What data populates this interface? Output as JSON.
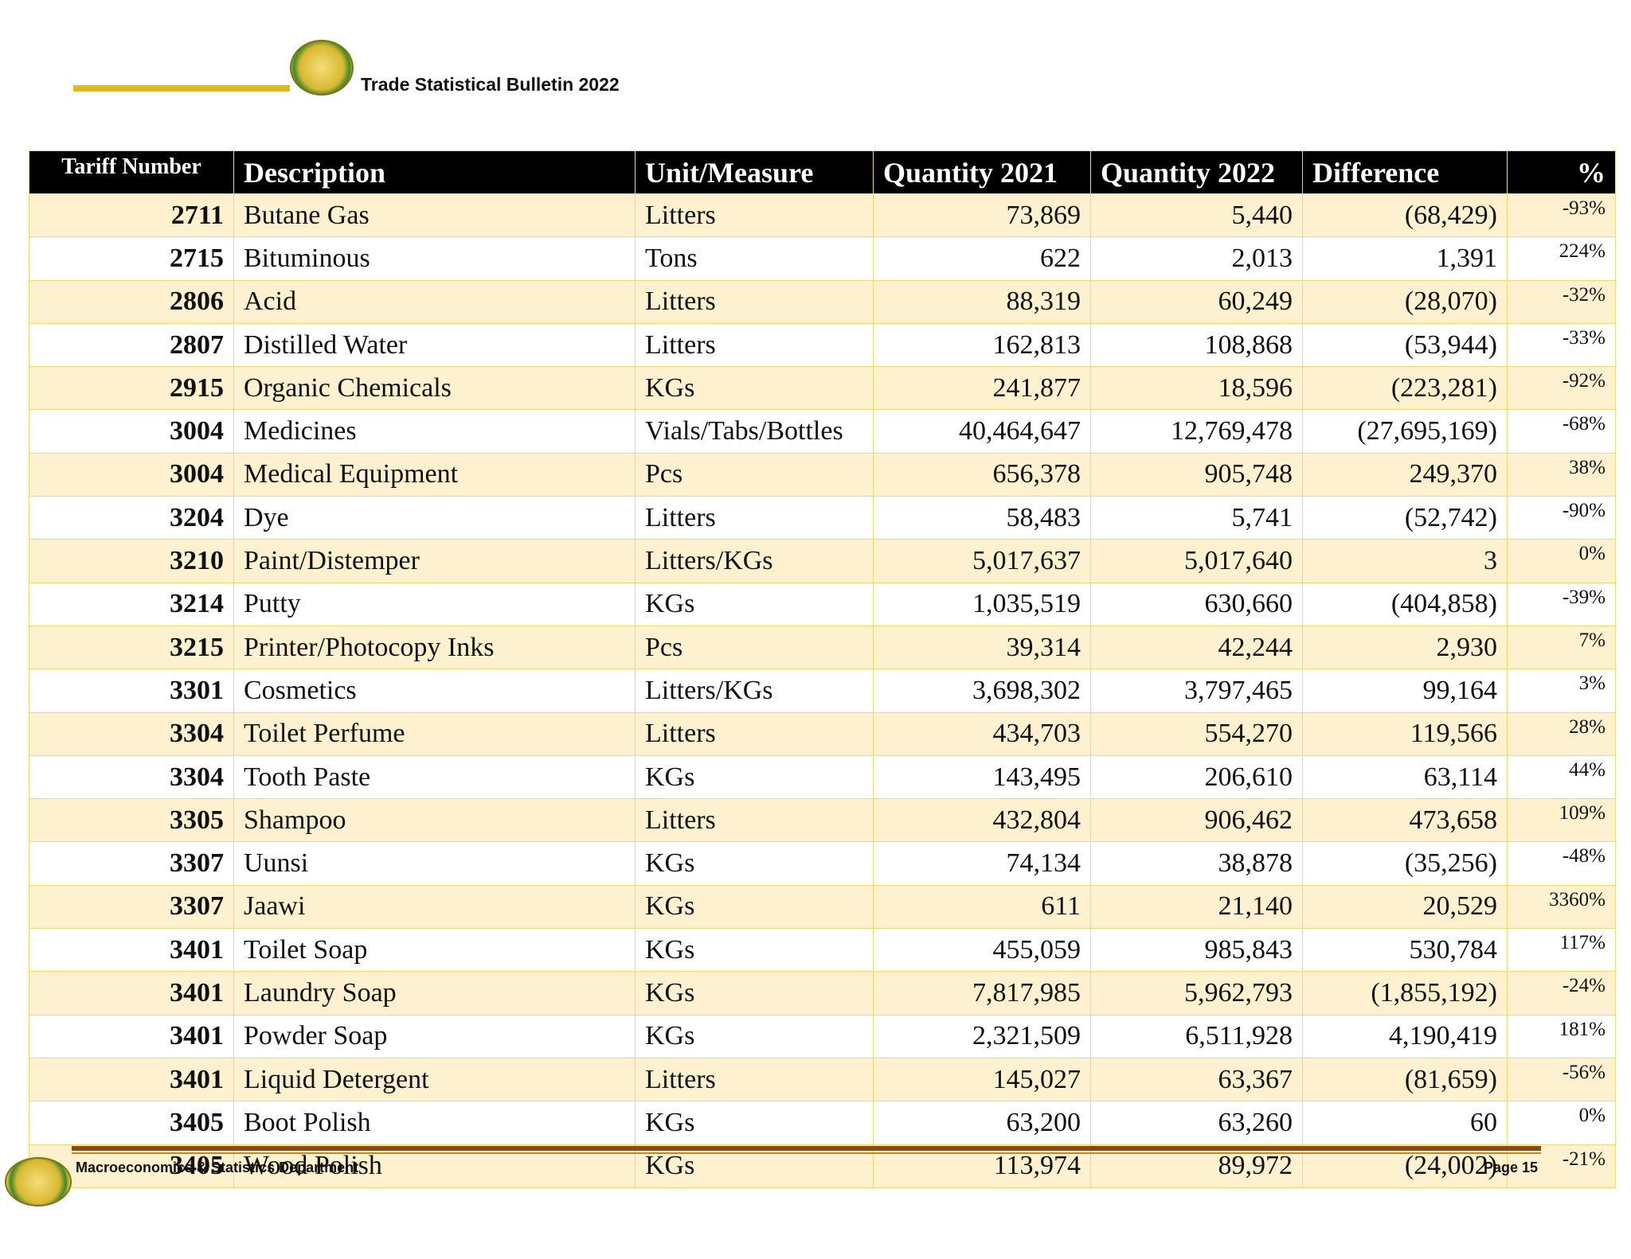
{
  "header": {
    "title": "Trade Statistical Bulletin 2022"
  },
  "table": {
    "columns": [
      "Tariff Number",
      "Description",
      "Unit/Measure",
      "Quantity 2021",
      "Quantity 2022",
      "Difference",
      "%"
    ],
    "rows": [
      [
        "2711",
        "Butane Gas",
        "Litters",
        "73,869",
        "5,440",
        "(68,429)",
        "-93%"
      ],
      [
        "2715",
        "Bituminous",
        "Tons",
        "622",
        "2,013",
        "1,391",
        "224%"
      ],
      [
        "2806",
        "Acid",
        "Litters",
        "88,319",
        "60,249",
        "(28,070)",
        "-32%"
      ],
      [
        "2807",
        "Distilled Water",
        "Litters",
        "162,813",
        "108,868",
        "(53,944)",
        "-33%"
      ],
      [
        "2915",
        "Organic Chemicals",
        "KGs",
        "241,877",
        "18,596",
        "(223,281)",
        "-92%"
      ],
      [
        "3004",
        "Medicines",
        "Vials/Tabs/Bottles",
        "40,464,647",
        "12,769,478",
        "(27,695,169)",
        "-68%"
      ],
      [
        "3004",
        "Medical Equipment",
        "Pcs",
        "656,378",
        "905,748",
        "249,370",
        "38%"
      ],
      [
        "3204",
        "Dye",
        "Litters",
        "58,483",
        "5,741",
        "(52,742)",
        "-90%"
      ],
      [
        "3210",
        "Paint/Distemper",
        "Litters/KGs",
        "5,017,637",
        "5,017,640",
        "3",
        "0%"
      ],
      [
        "3214",
        "Putty",
        "KGs",
        "1,035,519",
        "630,660",
        "(404,858)",
        "-39%"
      ],
      [
        "3215",
        "Printer/Photocopy Inks",
        "Pcs",
        "39,314",
        "42,244",
        "2,930",
        "7%"
      ],
      [
        "3301",
        "Cosmetics",
        "Litters/KGs",
        "3,698,302",
        "3,797,465",
        "99,164",
        "3%"
      ],
      [
        "3304",
        "Toilet Perfume",
        "Litters",
        "434,703",
        "554,270",
        "119,566",
        "28%"
      ],
      [
        "3304",
        "Tooth Paste",
        "KGs",
        "143,495",
        "206,610",
        "63,114",
        "44%"
      ],
      [
        "3305",
        "Shampoo",
        "Litters",
        "432,804",
        "906,462",
        "473,658",
        "109%"
      ],
      [
        "3307",
        "Uunsi",
        "KGs",
        "74,134",
        "38,878",
        "(35,256)",
        "-48%"
      ],
      [
        "3307",
        "Jaawi",
        "KGs",
        "611",
        "21,140",
        "20,529",
        "3360%"
      ],
      [
        "3401",
        "Toilet Soap",
        "KGs",
        "455,059",
        "985,843",
        "530,784",
        "117%"
      ],
      [
        "3401",
        "Laundry Soap",
        "KGs",
        "7,817,985",
        "5,962,793",
        "(1,855,192)",
        "-24%"
      ],
      [
        "3401",
        "Powder Soap",
        "KGs",
        "2,321,509",
        "6,511,928",
        "4,190,419",
        "181%"
      ],
      [
        "3401",
        "Liquid Detergent",
        "Litters",
        "145,027",
        "63,367",
        "(81,659)",
        "-56%"
      ],
      [
        "3405",
        "Boot Polish",
        "KGs",
        "63,200",
        "63,260",
        "60",
        "0%"
      ],
      [
        "3405",
        "Wood Polish",
        "KGs",
        "113,974",
        "89,972",
        "(24,002)",
        "-21%"
      ]
    ]
  },
  "footer": {
    "left": "Macroeconomics & Statistics Department",
    "right": "Page 15"
  }
}
